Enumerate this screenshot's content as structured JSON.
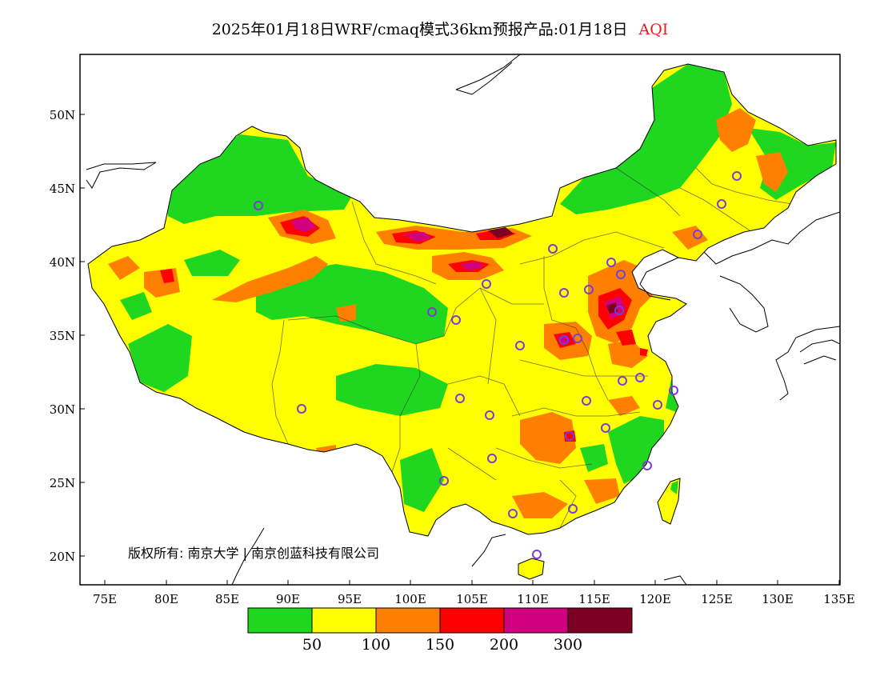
{
  "title": {
    "main": "2025年01月18日WRF/cmaq模式36km预报产品:01月18日",
    "variable": "AQI"
  },
  "copyright": "版权所有: 南京大学 | 南京创蓝科技有限公司",
  "axes": {
    "x_ticks": [
      "75E",
      "80E",
      "85E",
      "90E",
      "95E",
      "100E",
      "105E",
      "110E",
      "115E",
      "120E",
      "125E",
      "130E",
      "135E"
    ],
    "y_ticks": [
      "50N",
      "45N",
      "40N",
      "35N",
      "30N",
      "25N",
      "20N"
    ]
  },
  "legend": {
    "colors": [
      "#1ed71e",
      "#ffff00",
      "#ff8000",
      "#ff0000",
      "#d2007e",
      "#7d0023"
    ],
    "labels": [
      "50",
      "100",
      "150",
      "200",
      "300"
    ]
  },
  "colors": {
    "good": "#1ed71e",
    "moderate": "#ffff00",
    "light": "#ff8000",
    "medium": "#ff0000",
    "heavy": "#d2007e",
    "severe": "#7d0023",
    "station": "#7a3dd6"
  }
}
